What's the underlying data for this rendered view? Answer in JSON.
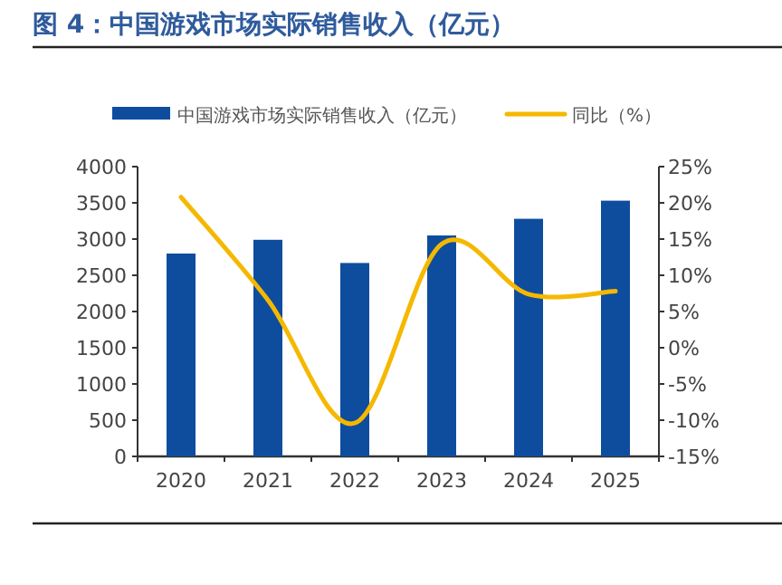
{
  "chart_data": {
    "type": "bar",
    "title": "图 4：中国游戏市场实际销售收入（亿元）",
    "categories": [
      "2020",
      "2021",
      "2022",
      "2023",
      "2024",
      "2025"
    ],
    "series": [
      {
        "name": "中国游戏市场实际销售收入（亿元）",
        "color": "#0e4d9e",
        "values": [
          2800,
          2990,
          2670,
          3050,
          3280,
          3530
        ]
      },
      {
        "name": "同比（%）",
        "type": "line",
        "axis": "y2",
        "color": "#f5b800",
        "values": [
          20.8,
          6.6,
          -10.4,
          14.3,
          7.4,
          7.8
        ]
      }
    ],
    "ylim": [
      0,
      4000
    ],
    "yticks": [
      0,
      500,
      1000,
      1500,
      2000,
      2500,
      3000,
      3500,
      4000
    ],
    "y2lim": [
      -15,
      25
    ],
    "y2ticks": [
      {
        "value": -15,
        "label": "-15%"
      },
      {
        "value": -10,
        "label": "-10%"
      },
      {
        "value": -5,
        "label": "-5%"
      },
      {
        "value": 0,
        "label": "0%"
      },
      {
        "value": 5,
        "label": "5%"
      },
      {
        "value": 10,
        "label": "10%"
      },
      {
        "value": 15,
        "label": "15%"
      },
      {
        "value": 20,
        "label": "20%"
      },
      {
        "value": 25,
        "label": "25%"
      }
    ],
    "legend": "top",
    "grid": false,
    "marker": "none",
    "line_style": "solid"
  }
}
